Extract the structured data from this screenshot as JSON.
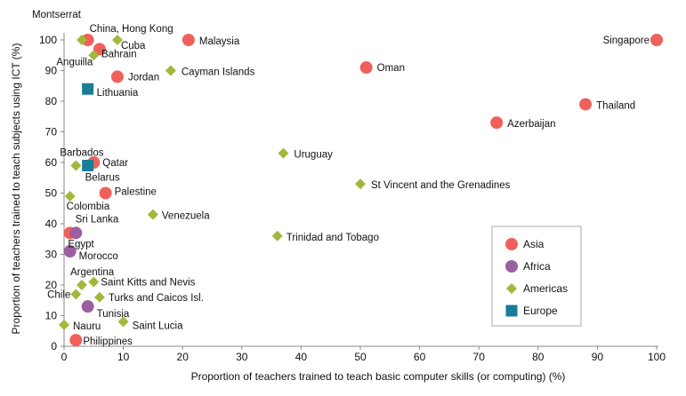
{
  "chart_data": {
    "type": "scatter",
    "xlabel": "Proportion of teachers trained to teach basic computer skills (or computing) (%)",
    "ylabel": "Proportion of teachers trained to teach subjects using ICT (%)",
    "xlim": [
      0,
      100
    ],
    "ylim": [
      0,
      100
    ],
    "xticks": [
      0,
      10,
      20,
      30,
      40,
      50,
      60,
      70,
      80,
      90,
      100
    ],
    "yticks": [
      0,
      10,
      20,
      30,
      40,
      50,
      60,
      70,
      80,
      90,
      100
    ],
    "grid": false,
    "legend_position": "bottom-right",
    "series": [
      {
        "name": "Asia",
        "color": "#f0605a",
        "marker": "circle",
        "points": [
          {
            "label": "China, Hong Kong",
            "x": 4,
            "y": 100
          },
          {
            "label": "Malaysia",
            "x": 21,
            "y": 100
          },
          {
            "label": "Singapore",
            "x": 100,
            "y": 100
          },
          {
            "label": "Bahrain",
            "x": 6,
            "y": 97
          },
          {
            "label": "Oman",
            "x": 51,
            "y": 91
          },
          {
            "label": "Jordan",
            "x": 9,
            "y": 88
          },
          {
            "label": "Thailand",
            "x": 88,
            "y": 79
          },
          {
            "label": "Azerbaijan",
            "x": 73,
            "y": 73
          },
          {
            "label": "Qatar",
            "x": 5,
            "y": 60
          },
          {
            "label": "Palestine",
            "x": 7,
            "y": 50
          },
          {
            "label": "Sri Lanka",
            "x": 1,
            "y": 37
          },
          {
            "label": "Philippines",
            "x": 2,
            "y": 2
          }
        ]
      },
      {
        "name": "Africa",
        "color": "#9b5fa0",
        "marker": "circle",
        "points": [
          {
            "label": "Egypt",
            "x": 2,
            "y": 37
          },
          {
            "label": "Morocco",
            "x": 1,
            "y": 31
          },
          {
            "label": "Tunisia",
            "x": 4,
            "y": 13
          }
        ]
      },
      {
        "name": "Americas",
        "color": "#a3b83a",
        "marker": "diamond",
        "points": [
          {
            "label": "Montserrat",
            "x": 3,
            "y": 100
          },
          {
            "label": "Cuba",
            "x": 9,
            "y": 100
          },
          {
            "label": "Anguilla",
            "x": 5,
            "y": 95
          },
          {
            "label": "Cayman Islands",
            "x": 18,
            "y": 90
          },
          {
            "label": "Uruguay",
            "x": 37,
            "y": 63
          },
          {
            "label": "Barbados",
            "x": 2,
            "y": 59
          },
          {
            "label": "St Vincent and the Grenadines",
            "x": 50,
            "y": 53
          },
          {
            "label": "Colombia",
            "x": 1,
            "y": 49
          },
          {
            "label": "Venezuela",
            "x": 15,
            "y": 43
          },
          {
            "label": "Trinidad and Tobago",
            "x": 36,
            "y": 36
          },
          {
            "label": "Saint Kitts and Nevis",
            "x": 5,
            "y": 21
          },
          {
            "label": "Argentina",
            "x": 3,
            "y": 20
          },
          {
            "label": "Chile",
            "x": 2,
            "y": 17
          },
          {
            "label": "Turks and Caicos Isl.",
            "x": 6,
            "y": 16
          },
          {
            "label": "Saint Lucia",
            "x": 10,
            "y": 8
          },
          {
            "label": "Nauru",
            "x": 0,
            "y": 7
          }
        ]
      },
      {
        "name": "Europe",
        "color": "#1b7c97",
        "marker": "square",
        "points": [
          {
            "label": "Lithuania",
            "x": 4,
            "y": 84
          },
          {
            "label": "Belarus",
            "x": 4,
            "y": 59
          }
        ]
      }
    ]
  }
}
